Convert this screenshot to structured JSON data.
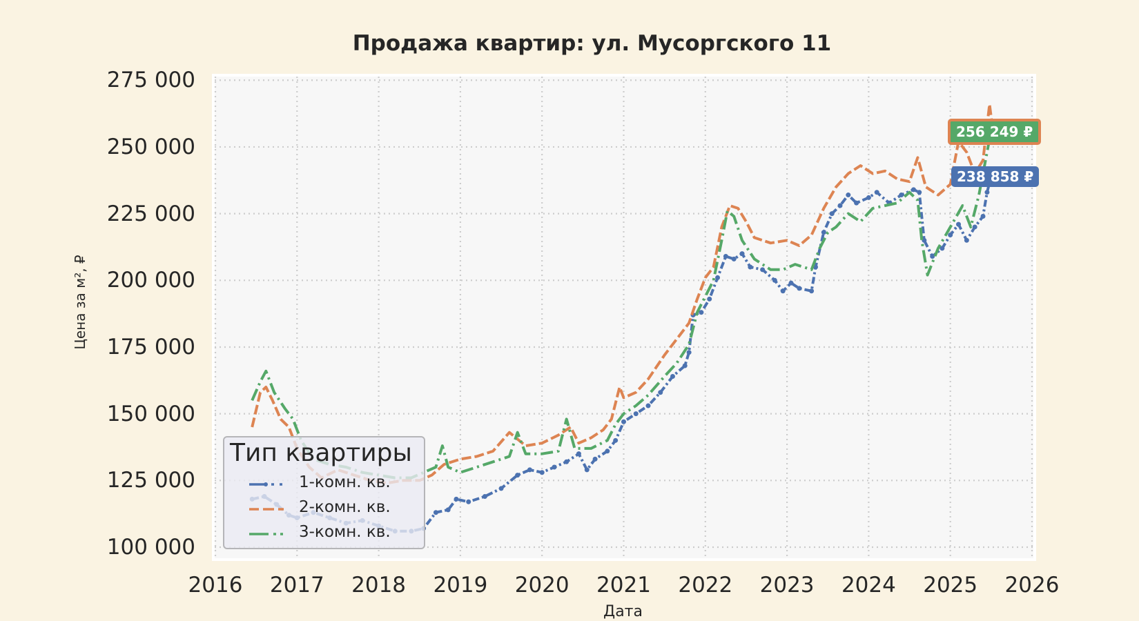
{
  "chart_data": {
    "type": "line",
    "title": "Продажа квартир: ул. Мусоргского 11",
    "xlabel": "Дата",
    "ylabel": "Цена за м², ₽",
    "xlim": [
      2016,
      2026
    ],
    "ylim": [
      97000,
      277000
    ],
    "x_ticks": [
      "2016",
      "2017",
      "2018",
      "2019",
      "2020",
      "2021",
      "2022",
      "2023",
      "2024",
      "2025",
      "2026"
    ],
    "y_ticks": [
      "275 000",
      "250 000",
      "225 000",
      "200 000",
      "175 000",
      "150 000",
      "125 000",
      "100 000"
    ],
    "y_tick_values": [
      275000,
      250000,
      225000,
      200000,
      175000,
      150000,
      125000,
      100000
    ],
    "grid": true,
    "legend": {
      "title": "Тип квартиры",
      "position": "lower left",
      "entries": [
        "1-комн. кв.",
        "2-комн. кв.",
        "3-комн. кв."
      ]
    },
    "series": [
      {
        "name": "1-комн. кв.",
        "color": "#4c72b0",
        "style": "dash-dot-marker",
        "points": [
          [
            2016.45,
            118000
          ],
          [
            2016.6,
            119000
          ],
          [
            2016.75,
            116000
          ],
          [
            2016.9,
            112000
          ],
          [
            2017.0,
            111000
          ],
          [
            2017.2,
            113000
          ],
          [
            2017.4,
            111000
          ],
          [
            2017.6,
            109000
          ],
          [
            2017.8,
            110000
          ],
          [
            2018.0,
            108000
          ],
          [
            2018.2,
            106000
          ],
          [
            2018.4,
            106000
          ],
          [
            2018.55,
            107000
          ],
          [
            2018.7,
            113000
          ],
          [
            2018.85,
            114000
          ],
          [
            2018.95,
            118000
          ],
          [
            2019.1,
            117000
          ],
          [
            2019.3,
            119000
          ],
          [
            2019.5,
            122000
          ],
          [
            2019.7,
            127000
          ],
          [
            2019.85,
            129000
          ],
          [
            2020.0,
            128000
          ],
          [
            2020.15,
            130000
          ],
          [
            2020.3,
            132000
          ],
          [
            2020.45,
            135000
          ],
          [
            2020.55,
            129000
          ],
          [
            2020.65,
            133000
          ],
          [
            2020.8,
            136000
          ],
          [
            2020.9,
            140000
          ],
          [
            2021.0,
            147000
          ],
          [
            2021.15,
            150000
          ],
          [
            2021.3,
            153000
          ],
          [
            2021.45,
            158000
          ],
          [
            2021.6,
            164000
          ],
          [
            2021.75,
            168000
          ],
          [
            2021.8,
            173000
          ],
          [
            2021.85,
            187000
          ],
          [
            2021.95,
            188000
          ],
          [
            2022.05,
            193000
          ],
          [
            2022.15,
            201000
          ],
          [
            2022.25,
            209000
          ],
          [
            2022.35,
            208000
          ],
          [
            2022.45,
            210000
          ],
          [
            2022.55,
            205000
          ],
          [
            2022.7,
            204000
          ],
          [
            2022.85,
            200000
          ],
          [
            2022.95,
            196000
          ],
          [
            2023.05,
            199000
          ],
          [
            2023.15,
            197000
          ],
          [
            2023.3,
            196000
          ],
          [
            2023.35,
            205000
          ],
          [
            2023.45,
            218000
          ],
          [
            2023.55,
            225000
          ],
          [
            2023.65,
            228000
          ],
          [
            2023.75,
            232000
          ],
          [
            2023.85,
            229000
          ],
          [
            2024.0,
            231000
          ],
          [
            2024.1,
            233000
          ],
          [
            2024.25,
            229000
          ],
          [
            2024.4,
            232000
          ],
          [
            2024.55,
            234000
          ],
          [
            2024.62,
            233000
          ],
          [
            2024.68,
            215000
          ],
          [
            2024.78,
            209000
          ],
          [
            2024.9,
            212000
          ],
          [
            2025.0,
            217000
          ],
          [
            2025.1,
            221000
          ],
          [
            2025.2,
            215000
          ],
          [
            2025.3,
            220000
          ],
          [
            2025.4,
            224000
          ],
          [
            2025.45,
            233000
          ],
          [
            2025.5,
            238858
          ]
        ],
        "last_value": 238858,
        "last_label": "238 858 ₽"
      },
      {
        "name": "2-комн. кв.",
        "color": "#dd8452",
        "style": "dashed",
        "points": [
          [
            2016.45,
            145000
          ],
          [
            2016.55,
            158000
          ],
          [
            2016.62,
            160000
          ],
          [
            2016.7,
            155000
          ],
          [
            2016.8,
            148000
          ],
          [
            2016.9,
            145000
          ],
          [
            2017.0,
            137000
          ],
          [
            2017.15,
            130000
          ],
          [
            2017.3,
            126000
          ],
          [
            2017.5,
            129000
          ],
          [
            2017.7,
            127000
          ],
          [
            2017.9,
            125000
          ],
          [
            2018.1,
            124000
          ],
          [
            2018.3,
            125000
          ],
          [
            2018.5,
            125000
          ],
          [
            2018.65,
            127000
          ],
          [
            2018.8,
            131000
          ],
          [
            2019.0,
            133000
          ],
          [
            2019.2,
            134000
          ],
          [
            2019.4,
            136000
          ],
          [
            2019.6,
            143000
          ],
          [
            2019.8,
            138000
          ],
          [
            2020.0,
            139000
          ],
          [
            2020.2,
            142000
          ],
          [
            2020.35,
            145000
          ],
          [
            2020.45,
            139000
          ],
          [
            2020.6,
            141000
          ],
          [
            2020.75,
            144000
          ],
          [
            2020.85,
            148000
          ],
          [
            2020.95,
            160000
          ],
          [
            2021.0,
            156000
          ],
          [
            2021.15,
            158000
          ],
          [
            2021.3,
            163000
          ],
          [
            2021.5,
            172000
          ],
          [
            2021.65,
            178000
          ],
          [
            2021.8,
            184000
          ],
          [
            2021.9,
            193000
          ],
          [
            2022.0,
            201000
          ],
          [
            2022.1,
            205000
          ],
          [
            2022.2,
            220000
          ],
          [
            2022.3,
            228000
          ],
          [
            2022.4,
            227000
          ],
          [
            2022.5,
            222000
          ],
          [
            2022.6,
            216000
          ],
          [
            2022.8,
            214000
          ],
          [
            2023.0,
            215000
          ],
          [
            2023.15,
            213000
          ],
          [
            2023.3,
            217000
          ],
          [
            2023.45,
            227000
          ],
          [
            2023.6,
            235000
          ],
          [
            2023.75,
            240000
          ],
          [
            2023.9,
            243000
          ],
          [
            2024.05,
            240000
          ],
          [
            2024.2,
            241000
          ],
          [
            2024.35,
            238000
          ],
          [
            2024.5,
            237000
          ],
          [
            2024.6,
            246000
          ],
          [
            2024.7,
            235000
          ],
          [
            2024.85,
            232000
          ],
          [
            2025.0,
            236000
          ],
          [
            2025.1,
            252000
          ],
          [
            2025.2,
            248000
          ],
          [
            2025.3,
            240000
          ],
          [
            2025.4,
            245000
          ],
          [
            2025.48,
            266000
          ],
          [
            2025.52,
            256249
          ]
        ],
        "last_value": 256249,
        "last_label": "256 249 ₽"
      },
      {
        "name": "3-комн. кв.",
        "color": "#55a868",
        "style": "dash-dot",
        "points": [
          [
            2016.45,
            155000
          ],
          [
            2016.55,
            162000
          ],
          [
            2016.62,
            166000
          ],
          [
            2016.72,
            158000
          ],
          [
            2016.85,
            152000
          ],
          [
            2016.95,
            148000
          ],
          [
            2017.05,
            140000
          ],
          [
            2017.2,
            133000
          ],
          [
            2017.4,
            131000
          ],
          [
            2017.6,
            130000
          ],
          [
            2017.8,
            128000
          ],
          [
            2018.0,
            127000
          ],
          [
            2018.2,
            126000
          ],
          [
            2018.4,
            126000
          ],
          [
            2018.55,
            128000
          ],
          [
            2018.7,
            130000
          ],
          [
            2018.78,
            138000
          ],
          [
            2018.85,
            130000
          ],
          [
            2019.0,
            128000
          ],
          [
            2019.2,
            130000
          ],
          [
            2019.4,
            132000
          ],
          [
            2019.6,
            134000
          ],
          [
            2019.7,
            143000
          ],
          [
            2019.8,
            135000
          ],
          [
            2020.0,
            135000
          ],
          [
            2020.2,
            136000
          ],
          [
            2020.3,
            148000
          ],
          [
            2020.4,
            137000
          ],
          [
            2020.6,
            137000
          ],
          [
            2020.8,
            140000
          ],
          [
            2020.9,
            146000
          ],
          [
            2021.0,
            150000
          ],
          [
            2021.15,
            153000
          ],
          [
            2021.3,
            157000
          ],
          [
            2021.5,
            164000
          ],
          [
            2021.65,
            169000
          ],
          [
            2021.8,
            176000
          ],
          [
            2021.9,
            188000
          ],
          [
            2022.0,
            194000
          ],
          [
            2022.1,
            200000
          ],
          [
            2022.2,
            215000
          ],
          [
            2022.27,
            226000
          ],
          [
            2022.35,
            224000
          ],
          [
            2022.45,
            215000
          ],
          [
            2022.6,
            208000
          ],
          [
            2022.8,
            204000
          ],
          [
            2022.95,
            204000
          ],
          [
            2023.1,
            206000
          ],
          [
            2023.3,
            204000
          ],
          [
            2023.4,
            212000
          ],
          [
            2023.5,
            218000
          ],
          [
            2023.6,
            220000
          ],
          [
            2023.75,
            225000
          ],
          [
            2023.9,
            222000
          ],
          [
            2024.05,
            227000
          ],
          [
            2024.2,
            228000
          ],
          [
            2024.35,
            229000
          ],
          [
            2024.5,
            233000
          ],
          [
            2024.6,
            230000
          ],
          [
            2024.65,
            215000
          ],
          [
            2024.72,
            202000
          ],
          [
            2024.85,
            212000
          ],
          [
            2025.0,
            220000
          ],
          [
            2025.15,
            228000
          ],
          [
            2025.25,
            220000
          ],
          [
            2025.35,
            232000
          ],
          [
            2025.45,
            248000
          ],
          [
            2025.5,
            256249
          ]
        ],
        "last_value": 256249,
        "last_label": "256 249 ₽"
      }
    ],
    "annotations": [
      {
        "text": "256 249 ₽",
        "series": "3-комн. кв.",
        "box_color": "#55a868",
        "edge_color": "#dd8452"
      },
      {
        "text": "238 858 ₽",
        "series": "1-комн. кв.",
        "box_color": "#4c72b0"
      }
    ]
  }
}
